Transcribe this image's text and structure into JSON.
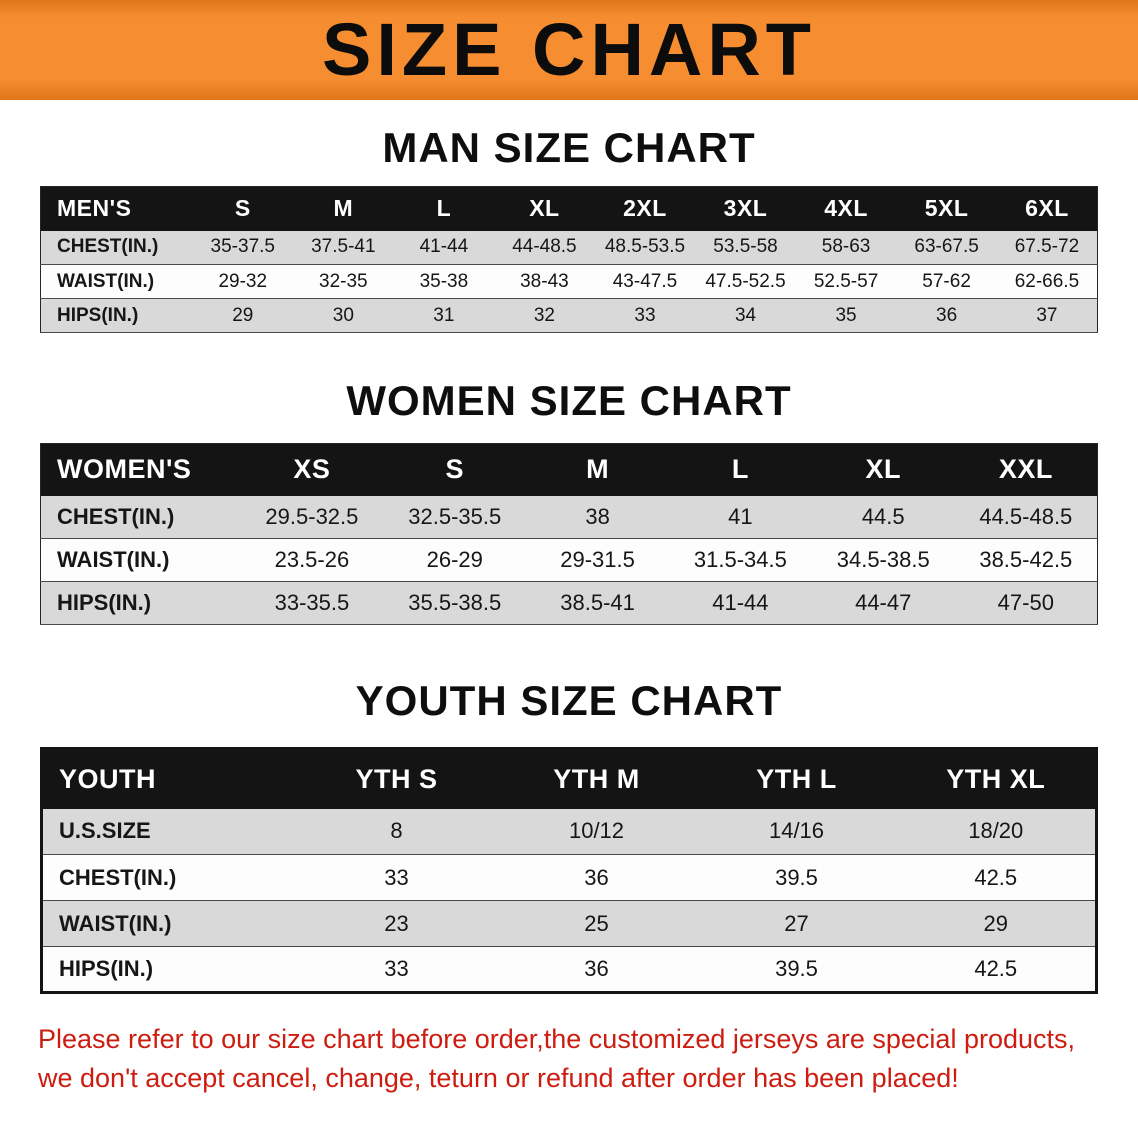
{
  "banner": {
    "title": "SIZE CHART"
  },
  "men": {
    "heading": "MAN SIZE CHART",
    "header": [
      "MEN'S",
      "S",
      "M",
      "L",
      "XL",
      "2XL",
      "3XL",
      "4XL",
      "5XL",
      "6XL"
    ],
    "rows": [
      [
        "CHEST(IN.)",
        "35-37.5",
        "37.5-41",
        "41-44",
        "44-48.5",
        "48.5-53.5",
        "53.5-58",
        "58-63",
        "63-67.5",
        "67.5-72"
      ],
      [
        "WAIST(IN.)",
        "29-32",
        "32-35",
        "35-38",
        "38-43",
        "43-47.5",
        "47.5-52.5",
        "52.5-57",
        "57-62",
        "62-66.5"
      ],
      [
        "HIPS(IN.)",
        "29",
        "30",
        "31",
        "32",
        "33",
        "34",
        "35",
        "36",
        "37"
      ]
    ]
  },
  "women": {
    "heading": "WOMEN SIZE CHART",
    "header": [
      "WOMEN'S",
      "XS",
      "S",
      "M",
      "L",
      "XL",
      "XXL"
    ],
    "rows": [
      [
        "CHEST(IN.)",
        "29.5-32.5",
        "32.5-35.5",
        "38",
        "41",
        "44.5",
        "44.5-48.5"
      ],
      [
        "WAIST(IN.)",
        "23.5-26",
        "26-29",
        "29-31.5",
        "31.5-34.5",
        "34.5-38.5",
        "38.5-42.5"
      ],
      [
        "HIPS(IN.)",
        "33-35.5",
        "35.5-38.5",
        "38.5-41",
        "41-44",
        "44-47",
        "47-50"
      ]
    ]
  },
  "youth": {
    "heading": "YOUTH SIZE CHART",
    "header": [
      "YOUTH",
      "YTH S",
      "YTH M",
      "YTH L",
      "YTH XL"
    ],
    "rows": [
      [
        "U.S.SIZE",
        "8",
        "10/12",
        "14/16",
        "18/20"
      ],
      [
        "CHEST(IN.)",
        "33",
        "36",
        "39.5",
        "42.5"
      ],
      [
        "WAIST(IN.)",
        "23",
        "25",
        "27",
        "29"
      ],
      [
        "HIPS(IN.)",
        "33",
        "36",
        "39.5",
        "42.5"
      ]
    ]
  },
  "disclaimer": {
    "line1": "Please refer to our size chart before order,the customized jerseys are special products,",
    "line2": "we don't accept cancel, change, teturn or refund after order has been placed!"
  },
  "colors": {
    "banner": "#F5831F",
    "table_header": "#141414",
    "row_stripe": "#D9D9D9",
    "disclaimer_red": "#CC1D10",
    "text": "#111111"
  }
}
